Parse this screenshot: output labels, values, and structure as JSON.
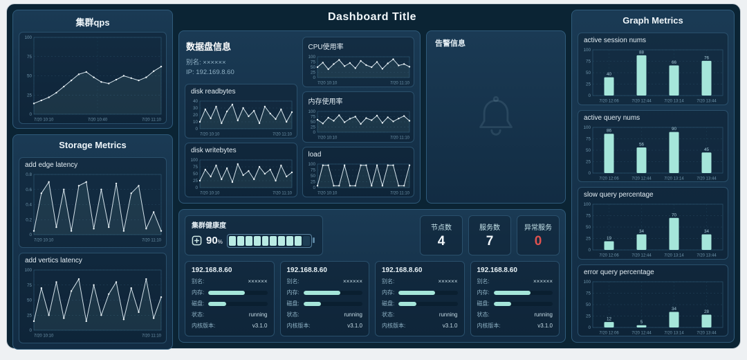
{
  "header": {
    "title": "Dashboard Title"
  },
  "left": {
    "cluster_qps_title": "集群qps",
    "storage_title": "Storage Metrics"
  },
  "center": {
    "disk_info": {
      "title": "数据盘信息",
      "alias_label": "别名:",
      "alias_value": "××××××",
      "ip_label": "IP:",
      "ip_value": "192.169.8.60"
    },
    "alert_title": "告警信息",
    "health": {
      "title": "集群健康度",
      "percent": "90",
      "unit": "%",
      "segments_total": 10,
      "segments_filled": 9
    },
    "stats": [
      {
        "label": "节点数",
        "value": "4"
      },
      {
        "label": "服务数",
        "value": "7"
      },
      {
        "label": "异常服务",
        "value": "0"
      }
    ],
    "servers": [
      {
        "ip": "192.168.8.60",
        "alias_label": "别名:",
        "alias_value": "××××××",
        "mem_label": "内存:",
        "mem_pct": 62,
        "disk_label": "磁盘:",
        "disk_pct": 30,
        "status_label": "状态:",
        "status_value": "running",
        "kernel_label": "内核版本:",
        "kernel_value": "v3.1.0"
      },
      {
        "ip": "192.168.8.60",
        "alias_label": "别名:",
        "alias_value": "××××××",
        "mem_label": "内存:",
        "mem_pct": 62,
        "disk_label": "磁盘:",
        "disk_pct": 30,
        "status_label": "状态:",
        "status_value": "running",
        "kernel_label": "内核版本:",
        "kernel_value": "v3.1.0"
      },
      {
        "ip": "192.168.8.60",
        "alias_label": "别名:",
        "alias_value": "××××××",
        "mem_label": "内存:",
        "mem_pct": 62,
        "disk_label": "磁盘:",
        "disk_pct": 30,
        "status_label": "状态:",
        "status_value": "running",
        "kernel_label": "内核版本:",
        "kernel_value": "v3.1.0"
      },
      {
        "ip": "192.168.8.60",
        "alias_label": "别名:",
        "alias_value": "××××××",
        "mem_label": "内存:",
        "mem_pct": 62,
        "disk_label": "磁盘:",
        "disk_pct": 30,
        "status_label": "状态:",
        "status_value": "running",
        "kernel_label": "内核版本:",
        "kernel_value": "v3.1.0"
      }
    ]
  },
  "right": {
    "title": "Graph Metrics"
  },
  "colors": {
    "background": "#0b2434",
    "panel_border": "#2f5b7b",
    "accent_teal": "#a5e6da",
    "accent_red": "#e0524f",
    "line": "#d5e3eb"
  },
  "chart_data": {
    "cluster_qps": {
      "type": "line",
      "ylim": [
        0,
        100
      ],
      "yticks": [
        0,
        25,
        50,
        75,
        100
      ],
      "x_labels": [
        "7/20 10:10",
        "7/20 10:40",
        "7/20 11:10"
      ],
      "values": [
        14,
        18,
        22,
        28,
        36,
        44,
        52,
        55,
        48,
        42,
        40,
        45,
        50,
        47,
        44,
        48,
        56,
        62
      ]
    },
    "add_edge_latency": {
      "type": "line",
      "title": "add edge latency",
      "ylim": [
        0,
        0.8
      ],
      "yticks": [
        0,
        0.2,
        0.4,
        0.6,
        0.8
      ],
      "x_labels": [
        "7/20 10:10",
        "7/20 11:10"
      ],
      "values": [
        0.05,
        0.55,
        0.7,
        0.1,
        0.6,
        0.05,
        0.65,
        0.7,
        0.08,
        0.6,
        0.1,
        0.68,
        0.05,
        0.55,
        0.65,
        0.08,
        0.3,
        0.05
      ]
    },
    "add_vertics_latency": {
      "type": "line",
      "title": "add vertics latency",
      "ylim": [
        0,
        100
      ],
      "yticks": [
        0,
        25,
        50,
        75,
        100
      ],
      "x_labels": [
        "7/20 10:10",
        "7/20 11:10"
      ],
      "values": [
        15,
        70,
        25,
        80,
        20,
        65,
        85,
        15,
        75,
        25,
        60,
        80,
        18,
        70,
        30,
        85,
        20,
        55
      ]
    },
    "disk_readbytes": {
      "type": "line",
      "title": "disk readbytes",
      "ylim": [
        0,
        40
      ],
      "yticks": [
        0,
        10,
        20,
        30,
        40
      ],
      "x_labels": [
        "7/20 10:10",
        "7/20 11:10"
      ],
      "values": [
        10,
        28,
        15,
        32,
        8,
        25,
        35,
        12,
        30,
        18,
        26,
        8,
        32,
        22,
        14,
        28,
        10,
        24
      ]
    },
    "disk_writebytes": {
      "type": "line",
      "title": "disk writebytes",
      "ylim": [
        0,
        100
      ],
      "yticks": [
        0,
        25,
        50,
        75,
        100
      ],
      "x_labels": [
        "7/20 10:10",
        "7/20 11:10"
      ],
      "values": [
        25,
        65,
        40,
        80,
        30,
        70,
        20,
        85,
        45,
        60,
        30,
        75,
        50,
        65,
        25,
        80,
        40,
        55
      ]
    },
    "cpu_usage": {
      "type": "line",
      "title": "CPU使用率",
      "ylim": [
        0,
        100
      ],
      "yticks": [
        0,
        25,
        50,
        75,
        100
      ],
      "x_labels": [
        "7/20 10:10",
        "7/20 11:10"
      ],
      "values": [
        50,
        72,
        40,
        65,
        85,
        55,
        70,
        45,
        80,
        60,
        50,
        75,
        42,
        68,
        88,
        58,
        65,
        52
      ]
    },
    "mem_usage": {
      "type": "line",
      "title": "内存使用率",
      "ylim": [
        0,
        100
      ],
      "yticks": [
        0,
        25,
        50,
        75,
        100
      ],
      "x_labels": [
        "7/20 10:10",
        "7/20 11:10"
      ],
      "values": [
        60,
        42,
        70,
        55,
        82,
        48,
        65,
        75,
        40,
        68,
        58,
        80,
        45,
        72,
        52,
        66,
        78,
        55
      ]
    },
    "load": {
      "type": "line",
      "title": "load",
      "ylim": [
        0,
        100
      ],
      "yticks": [
        0,
        25,
        50,
        75,
        100
      ],
      "x_labels": [
        "7/20 10:10",
        "7/20 11:10"
      ],
      "values": [
        8,
        95,
        95,
        8,
        8,
        95,
        8,
        8,
        95,
        95,
        8,
        95,
        8,
        95,
        95,
        8,
        8,
        95
      ]
    },
    "active_session_nums": {
      "type": "bar",
      "title": "active session nums",
      "ylim": [
        0,
        100
      ],
      "yticks": [
        0,
        25,
        50,
        75,
        100
      ],
      "x_labels": [
        "7/20 12:06",
        "7/20 12:44",
        "7/20 13:14",
        "7/20 13:44"
      ],
      "values": [
        40,
        88,
        66,
        76
      ]
    },
    "active_query_nums": {
      "type": "bar",
      "title": "active query nums",
      "ylim": [
        0,
        100
      ],
      "yticks": [
        0,
        25,
        50,
        75,
        100
      ],
      "x_labels": [
        "7/20 12:06",
        "7/20 12:44",
        "7/20 13:14",
        "7/20 13:44"
      ],
      "values": [
        86,
        56,
        90,
        45
      ]
    },
    "slow_query_percentage": {
      "type": "bar",
      "title": "slow query percentage",
      "ylim": [
        0,
        100
      ],
      "yticks": [
        0,
        25,
        50,
        75,
        100
      ],
      "x_labels": [
        "7/20 12:06",
        "7/20 12:44",
        "7/20 13:14",
        "7/20 13:44"
      ],
      "values": [
        19,
        34,
        70,
        34
      ]
    },
    "error_query_percentage": {
      "type": "bar",
      "title": "error query percentage",
      "ylim": [
        0,
        100
      ],
      "yticks": [
        0,
        25,
        50,
        75,
        100
      ],
      "x_labels": [
        "7/20 12:06",
        "7/20 12:44",
        "7/20 13:14",
        "7/20 13:44"
      ],
      "values": [
        12,
        5,
        34,
        28
      ]
    }
  }
}
